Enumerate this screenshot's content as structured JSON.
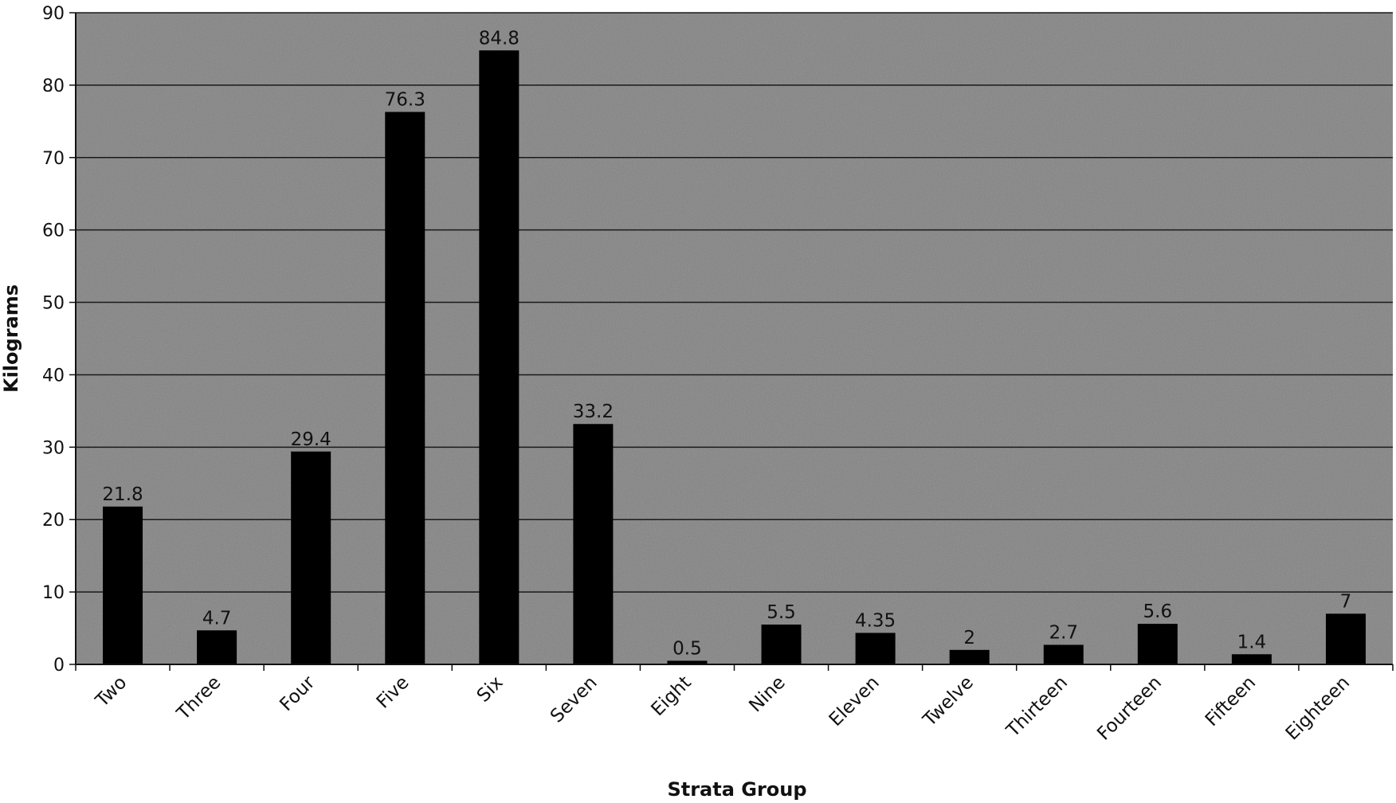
{
  "chart_data": {
    "type": "bar",
    "title": "",
    "xlabel": "Strata Group",
    "ylabel": "Kilograms",
    "ylim": [
      0,
      90
    ],
    "yticks": [
      0,
      10,
      20,
      30,
      40,
      50,
      60,
      70,
      80,
      90
    ],
    "grid": true,
    "legend": "none",
    "categories": [
      "Two",
      "Three",
      "Four",
      "Five",
      "Six",
      "Seven",
      "Eight",
      "Nine",
      "Eleven",
      "Twelve",
      "Thirteen",
      "Fourteen",
      "Fifteen",
      "Eighteen"
    ],
    "values": [
      21.8,
      4.7,
      29.4,
      76.3,
      84.8,
      33.2,
      0.5,
      5.5,
      4.35,
      2,
      2.7,
      5.6,
      1.4,
      7
    ],
    "data_labels": [
      "21.8",
      "4.7",
      "29.4",
      "76.3",
      "84.8",
      "33.2",
      "0.5",
      "5.5",
      "4.35",
      "2",
      "2.7",
      "5.6",
      "1.4",
      "7"
    ],
    "colors": {
      "bar": "#000000",
      "plot_background": "#9c9c9c",
      "gridline": "#1a1a1a"
    }
  }
}
